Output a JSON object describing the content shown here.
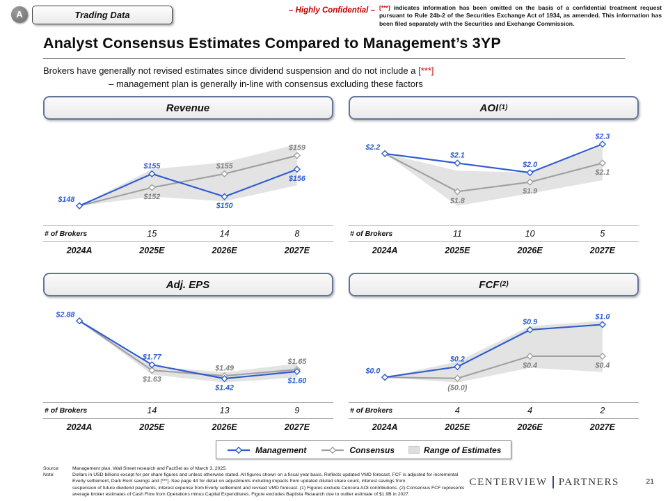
{
  "page": {
    "badge": "A",
    "tag_label": "Trading Data",
    "confidential": "– Highly Confidential –",
    "legal_marker": "[***]",
    "legal_text": " indicates information has been omitted on the basis of a confidential treatment request pursuant to Rule 24b-2 of the Securities Exchange Act of 1934, as amended. This information has been filed separately with the Securities and Exchange Commission.",
    "title": "Analyst Consensus Estimates Compared to Management’s 3YP",
    "subtitle_1a": "Brokers have generally not revised estimates since dividend suspension and do not include a ",
    "subtitle_1b": "[***]",
    "subtitle_2": "– management plan is generally in-line with consensus excluding these factors",
    "page_number": "21",
    "logo_left": "CENTERVIEW",
    "logo_right": "PARTNERS"
  },
  "colors": {
    "management": "#2d5bd1",
    "consensus": "#a0a0a0",
    "consensus_label": "#7f7f7f",
    "range": "#dedede",
    "red": "#c00000"
  },
  "legend": {
    "management": "Management",
    "consensus": "Consensus",
    "range": "Range of Estimates"
  },
  "brokers_label": "# of Brokers",
  "categories": [
    "2024A",
    "2025E",
    "2026E",
    "2027E"
  ],
  "chart_data": [
    {
      "type": "line",
      "title": "Revenue",
      "sup": "",
      "categories": [
        "2024A",
        "2025E",
        "2026E",
        "2027E"
      ],
      "series": [
        {
          "name": "Management",
          "values": [
            148,
            155,
            150,
            156
          ],
          "labels": [
            "$148",
            "$155",
            "$150",
            "$156"
          ],
          "label_pos": [
            "above-left",
            "above",
            "below",
            "below"
          ]
        },
        {
          "name": "Consensus",
          "values": [
            148,
            152,
            155,
            159
          ],
          "labels": [
            null,
            "$152",
            "$155",
            "$159"
          ],
          "label_pos": [
            null,
            "below",
            "above",
            "above"
          ]
        }
      ],
      "range": {
        "lower": [
          148,
          150,
          149,
          152.5
        ],
        "upper": [
          148,
          156,
          157.5,
          161.5
        ]
      },
      "brokers": [
        "15",
        "14",
        "8"
      ]
    },
    {
      "type": "line",
      "title": "AOI",
      "sup": "(1)",
      "categories": [
        "2024A",
        "2025E",
        "2026E",
        "2027E"
      ],
      "series": [
        {
          "name": "Management",
          "values": [
            2.2,
            2.1,
            2.0,
            2.3
          ],
          "labels": [
            "$2.2",
            "$2.1",
            "$2.0",
            "$2.3"
          ],
          "label_pos": [
            "above-left",
            "above",
            "above",
            "above"
          ]
        },
        {
          "name": "Consensus",
          "values": [
            2.2,
            1.8,
            1.9,
            2.1
          ],
          "labels": [
            null,
            "$1.8",
            "$1.9",
            "$2.1"
          ],
          "label_pos": [
            null,
            "below",
            "below",
            "below"
          ]
        }
      ],
      "range": {
        "lower": [
          2.2,
          1.65,
          1.78,
          1.92
        ],
        "upper": [
          2.2,
          2.02,
          2.0,
          2.28
        ]
      },
      "brokers": [
        "11",
        "10",
        "5"
      ]
    },
    {
      "type": "line",
      "title": "Adj. EPS",
      "sup": "",
      "categories": [
        "2024A",
        "2025E",
        "2026E",
        "2027E"
      ],
      "series": [
        {
          "name": "Management",
          "values": [
            2.88,
            1.77,
            1.42,
            1.6
          ],
          "labels": [
            "$2.88",
            "$1.77",
            "$1.42",
            "$1.60"
          ],
          "label_pos": [
            "above-left",
            "above",
            "below",
            "below"
          ]
        },
        {
          "name": "Consensus",
          "values": [
            2.88,
            1.63,
            1.49,
            1.65
          ],
          "labels": [
            null,
            "$1.63",
            "$1.49",
            "$1.65"
          ],
          "label_pos": [
            null,
            "below",
            "above",
            "above"
          ]
        }
      ],
      "range": {
        "lower": [
          2.88,
          1.52,
          1.32,
          1.45
        ],
        "upper": [
          2.88,
          1.73,
          1.58,
          1.8
        ]
      },
      "brokers": [
        "14",
        "13",
        "9"
      ]
    },
    {
      "type": "line",
      "title": "FCF",
      "sup": "(2)",
      "categories": [
        "2024A",
        "2025E",
        "2026E",
        "2027E"
      ],
      "series": [
        {
          "name": "Management",
          "values": [
            0.0,
            0.2,
            0.9,
            1.0
          ],
          "labels": [
            "$0.0",
            "$0.2",
            "$0.9",
            "$1.0"
          ],
          "label_pos": [
            "above-left",
            "above",
            "above",
            "above"
          ]
        },
        {
          "name": "Consensus",
          "values": [
            0.0,
            -0.02,
            0.4,
            0.4
          ],
          "labels": [
            null,
            "($0.0)",
            "$0.4",
            "$0.4"
          ],
          "label_pos": [
            null,
            "below",
            "below",
            "below"
          ]
        }
      ],
      "range": {
        "lower": [
          0.0,
          -0.1,
          0.18,
          0.1
        ],
        "upper": [
          0.0,
          0.3,
          0.97,
          1.07
        ]
      },
      "brokers": [
        "4",
        "4",
        "2"
      ]
    }
  ],
  "footer": {
    "source_label": "Source:",
    "source": "Management plan, Wall Street research and FactSet as of March 3, 2025.",
    "note_label": "Note:",
    "note_lines": [
      "Dollars in USD billions except for per share figures and unless otherwise stated. All figures shown on a fiscal year basis. Reflects updated VMD forecast. FCF is adjusted for incremental",
      "Everly settlement, Dark Rent savings and [***]. See page 44 for detail on adjustments including impacts from updated diluted share count, interest savings from",
      "suspension of future dividend payments, interest expense from Everly settlement and revised VMD forecast. (1) Figures exclude Cencora AOI contributions. (2) Consensus FCF represents",
      "average broker estimates of Cash Flow from Operations minus Capital Expenditures. Figure excludes Baptista Research due to outlier estimate of $1.9B in 2027."
    ]
  }
}
